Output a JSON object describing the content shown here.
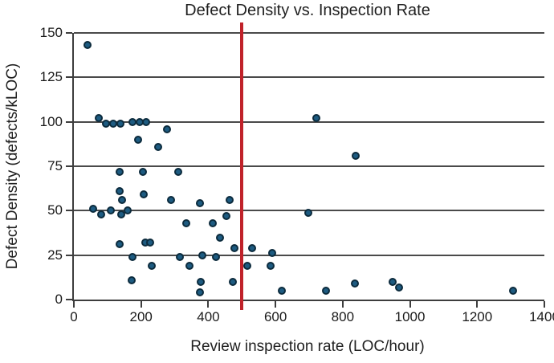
{
  "figure": {
    "background": "#ffffff"
  },
  "chart_data": {
    "type": "scatter",
    "title": "Defect Density vs. Inspection Rate",
    "xlabel": "Review inspection rate (LOC/hour)",
    "ylabel": "Defect Density (defects/kLOC)",
    "xlim": [
      0,
      1400
    ],
    "ylim": [
      0,
      150
    ],
    "x_ticks": [
      0,
      200,
      400,
      600,
      800,
      1000,
      1200,
      1400
    ],
    "y_ticks": [
      0,
      25,
      50,
      75,
      100,
      125,
      150
    ],
    "grid": "horizontal",
    "legend": "none",
    "grid_color": "#4a4a4a",
    "axis_color": "#3d3d3d",
    "text_color": "#1f1f1f",
    "point_color": "#1d5b81",
    "point_edge_color": "#0c2b3d",
    "reference_line": {
      "axis": "x",
      "value": 500,
      "color": "#c0222a"
    },
    "points": [
      [
        40,
        143
      ],
      [
        75,
        102
      ],
      [
        96,
        99
      ],
      [
        118,
        99
      ],
      [
        139,
        99
      ],
      [
        175,
        100
      ],
      [
        196,
        100
      ],
      [
        216,
        100
      ],
      [
        276,
        96
      ],
      [
        722,
        102
      ],
      [
        190,
        90
      ],
      [
        251,
        86
      ],
      [
        838,
        81
      ],
      [
        136,
        72
      ],
      [
        205,
        72
      ],
      [
        311,
        72
      ],
      [
        136,
        61
      ],
      [
        209,
        59
      ],
      [
        143,
        56
      ],
      [
        288,
        56
      ],
      [
        376,
        54
      ],
      [
        464,
        56
      ],
      [
        57,
        51
      ],
      [
        82,
        48
      ],
      [
        111,
        50
      ],
      [
        140,
        48
      ],
      [
        161,
        50
      ],
      [
        697,
        49
      ],
      [
        454,
        47
      ],
      [
        413,
        43
      ],
      [
        334,
        43
      ],
      [
        434,
        35
      ],
      [
        213,
        32
      ],
      [
        227,
        32
      ],
      [
        136,
        31
      ],
      [
        477,
        29
      ],
      [
        531,
        29
      ],
      [
        175,
        24
      ],
      [
        316,
        24
      ],
      [
        383,
        25
      ],
      [
        422,
        24
      ],
      [
        591,
        26
      ],
      [
        232,
        19
      ],
      [
        343,
        19
      ],
      [
        517,
        19
      ],
      [
        586,
        19
      ],
      [
        171,
        11
      ],
      [
        378,
        10
      ],
      [
        473,
        10
      ],
      [
        376,
        4
      ],
      [
        619,
        5
      ],
      [
        750,
        5
      ],
      [
        836,
        9
      ],
      [
        949,
        10
      ],
      [
        968,
        7
      ],
      [
        1308,
        5
      ]
    ]
  }
}
